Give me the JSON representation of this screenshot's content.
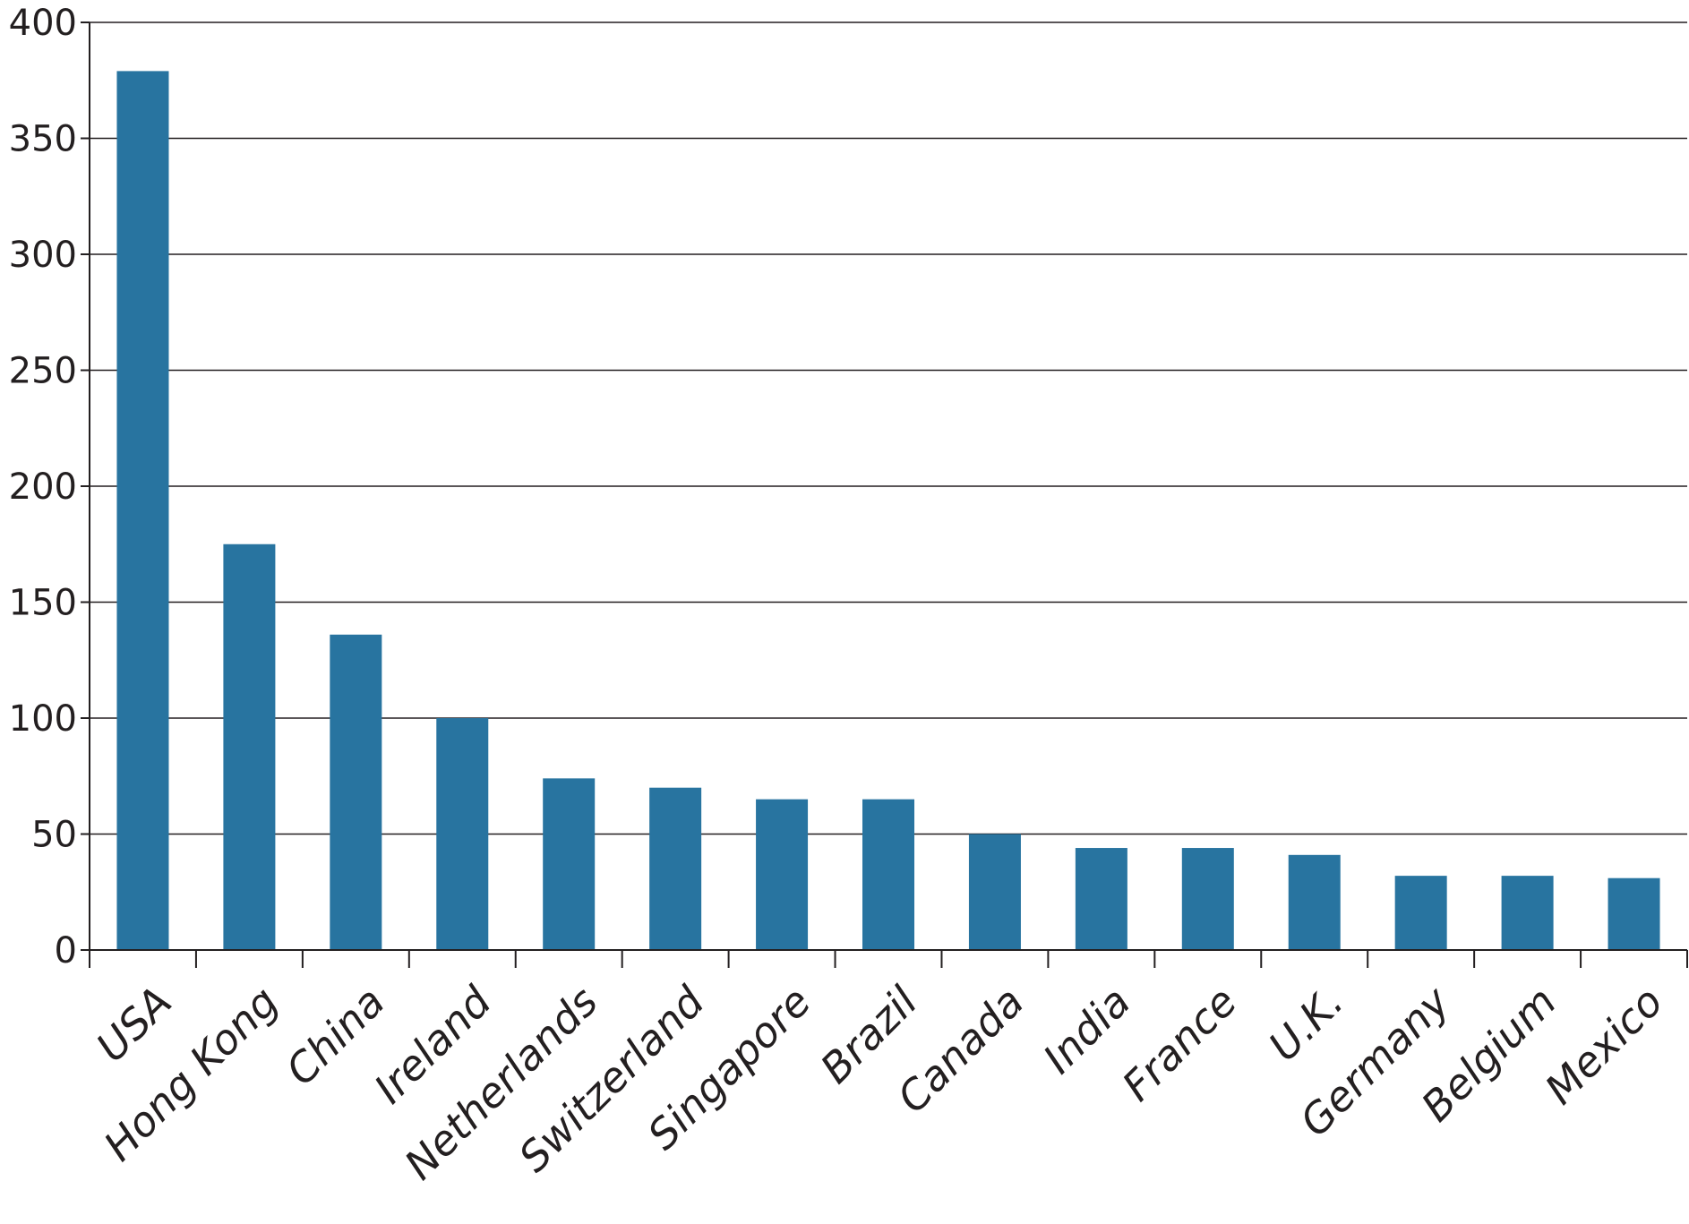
{
  "chart_data": {
    "type": "bar",
    "title": "",
    "xlabel": "",
    "ylabel": "",
    "categories": [
      "USA",
      "Hong Kong",
      "China",
      "Ireland",
      "Netherlands",
      "Switzerland",
      "Singapore",
      "Brazil",
      "Canada",
      "India",
      "France",
      "U.K.",
      "Germany",
      "Belgium",
      "Mexico"
    ],
    "values": [
      379,
      175,
      136,
      100,
      74,
      70,
      65,
      65,
      50,
      44,
      44,
      41,
      32,
      32,
      31
    ],
    "ylim": [
      0,
      400
    ],
    "yticks": [
      0,
      50,
      100,
      150,
      200,
      250,
      300,
      350,
      400
    ],
    "grid": true,
    "bar_color": "#2874a0"
  }
}
